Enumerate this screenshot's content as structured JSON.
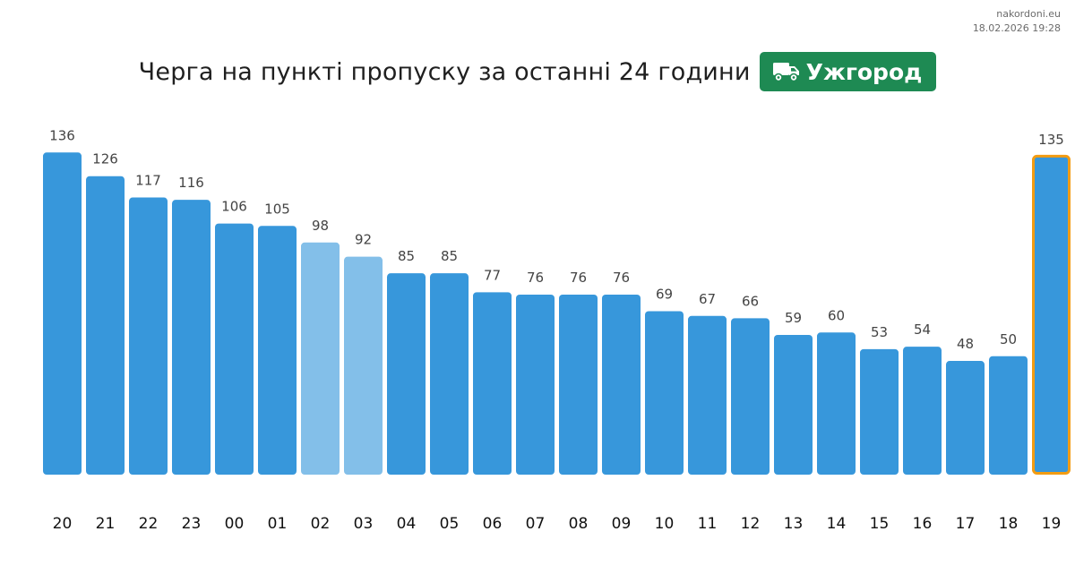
{
  "site": "nakordoni.eu",
  "timestamp": "18.02.2026 19:28",
  "title": "Черга на пункті пропуску за останні 24 години",
  "badge": {
    "icon": "truck-icon",
    "label": "Ужгород",
    "color": "#1e8a53"
  },
  "colors": {
    "bar": "#3797db",
    "bar_light": "#83bfe9",
    "highlight_border": "#f39c12"
  },
  "chart_data": {
    "type": "bar",
    "categories": [
      "20",
      "21",
      "22",
      "23",
      "00",
      "01",
      "02",
      "03",
      "04",
      "05",
      "06",
      "07",
      "08",
      "09",
      "10",
      "11",
      "12",
      "13",
      "14",
      "15",
      "16",
      "17",
      "18",
      "19"
    ],
    "values": [
      136,
      126,
      117,
      116,
      106,
      105,
      98,
      92,
      85,
      85,
      77,
      76,
      76,
      76,
      69,
      67,
      66,
      59,
      60,
      53,
      54,
      48,
      50,
      135
    ],
    "light_bars": [
      "02",
      "03"
    ],
    "highlighted": "19",
    "ylim": [
      0,
      140
    ],
    "grid": false,
    "legend": "none",
    "title": "Черга на пункті пропуску за останні 24 години",
    "xlabel": "",
    "ylabel": ""
  }
}
